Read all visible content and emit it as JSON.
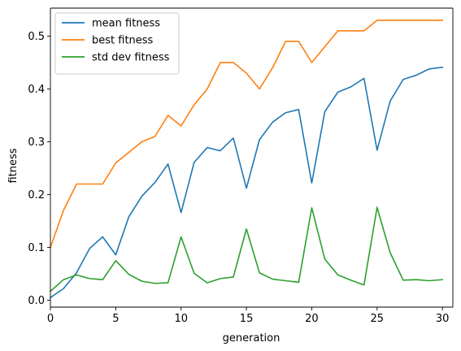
{
  "chart_data": {
    "type": "line",
    "title": "",
    "xlabel": "generation",
    "ylabel": "fitness",
    "xlim": [
      0,
      30.8
    ],
    "ylim": [
      -0.013,
      0.553
    ],
    "xticks": [
      0,
      5,
      10,
      15,
      20,
      25,
      30
    ],
    "xtick_labels": [
      "0",
      "5",
      "10",
      "15",
      "20",
      "25",
      "30"
    ],
    "yticks": [
      0.0,
      0.1,
      0.2,
      0.3,
      0.4,
      0.5
    ],
    "ytick_labels": [
      "0.0",
      "0.1",
      "0.2",
      "0.3",
      "0.4",
      "0.5"
    ],
    "grid": false,
    "legend_position": "top-left",
    "x": [
      0,
      1,
      2,
      3,
      4,
      5,
      6,
      7,
      8,
      9,
      10,
      11,
      12,
      13,
      14,
      15,
      16,
      17,
      18,
      19,
      20,
      21,
      22,
      23,
      24,
      25,
      26,
      27,
      28,
      29,
      30
    ],
    "series": [
      {
        "name": "mean fitness",
        "color": "#1f77b4",
        "values": [
          0.005,
          0.022,
          0.052,
          0.098,
          0.12,
          0.086,
          0.158,
          0.197,
          0.223,
          0.258,
          0.166,
          0.261,
          0.289,
          0.283,
          0.307,
          0.212,
          0.304,
          0.337,
          0.355,
          0.361,
          0.222,
          0.357,
          0.394,
          0.404,
          0.42,
          0.284,
          0.377,
          0.418,
          0.426,
          0.438,
          0.441
        ]
      },
      {
        "name": "best fitness",
        "color": "#ff7f0e",
        "values": [
          0.1,
          0.17,
          0.22,
          0.22,
          0.22,
          0.26,
          0.28,
          0.3,
          0.31,
          0.35,
          0.33,
          0.37,
          0.4,
          0.45,
          0.45,
          0.43,
          0.4,
          0.44,
          0.49,
          0.49,
          0.45,
          0.48,
          0.51,
          0.51,
          0.51,
          0.53,
          0.53,
          0.53,
          0.53,
          0.53,
          0.53
        ]
      },
      {
        "name": "std dev fitness",
        "color": "#2ca02c",
        "values": [
          0.017,
          0.039,
          0.048,
          0.041,
          0.039,
          0.075,
          0.049,
          0.036,
          0.032,
          0.033,
          0.12,
          0.051,
          0.033,
          0.041,
          0.044,
          0.135,
          0.052,
          0.04,
          0.037,
          0.034,
          0.175,
          0.078,
          0.048,
          0.038,
          0.029,
          0.176,
          0.09,
          0.038,
          0.039,
          0.037,
          0.039
        ]
      }
    ]
  }
}
